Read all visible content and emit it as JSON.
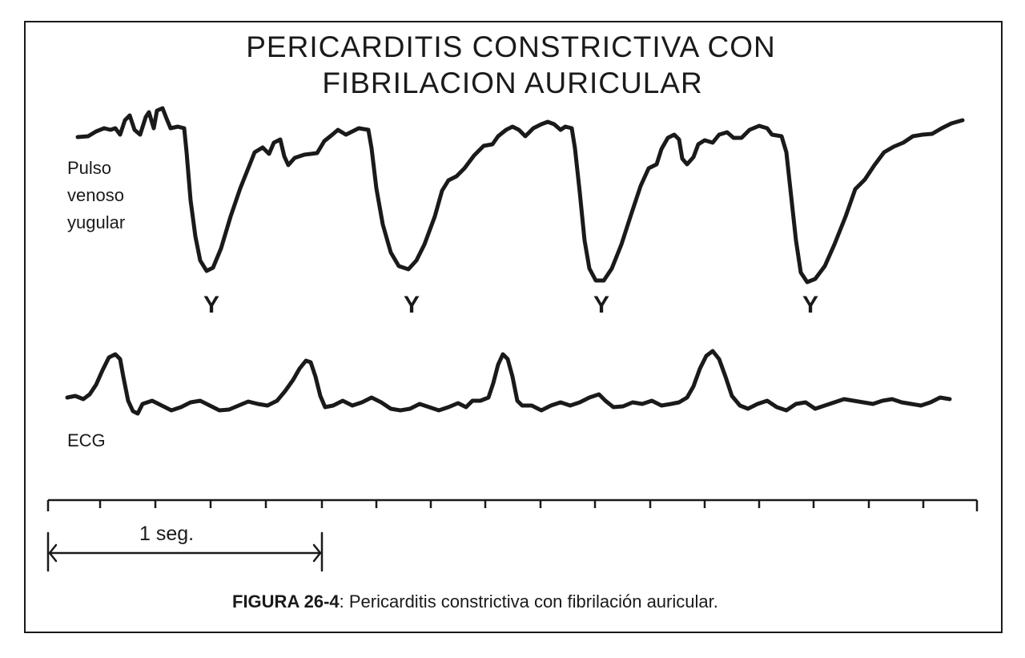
{
  "figure": {
    "title_line1": "PERICARDITIS CONSTRICTIVA CON",
    "title_line2": "FIBRILACION AURICULAR",
    "pulse_label": [
      "Pulso",
      "venoso",
      "yugular"
    ],
    "y_marker": "Y",
    "ecg_label": "ECG",
    "scale_label": "1 seg.",
    "caption_label": "FIGURA 26-4",
    "caption_text": ": Pericarditis constrictiva con fibrilación auricular."
  },
  "colors": {
    "ink": "#1a1a1a",
    "background": "#ffffff"
  }
}
